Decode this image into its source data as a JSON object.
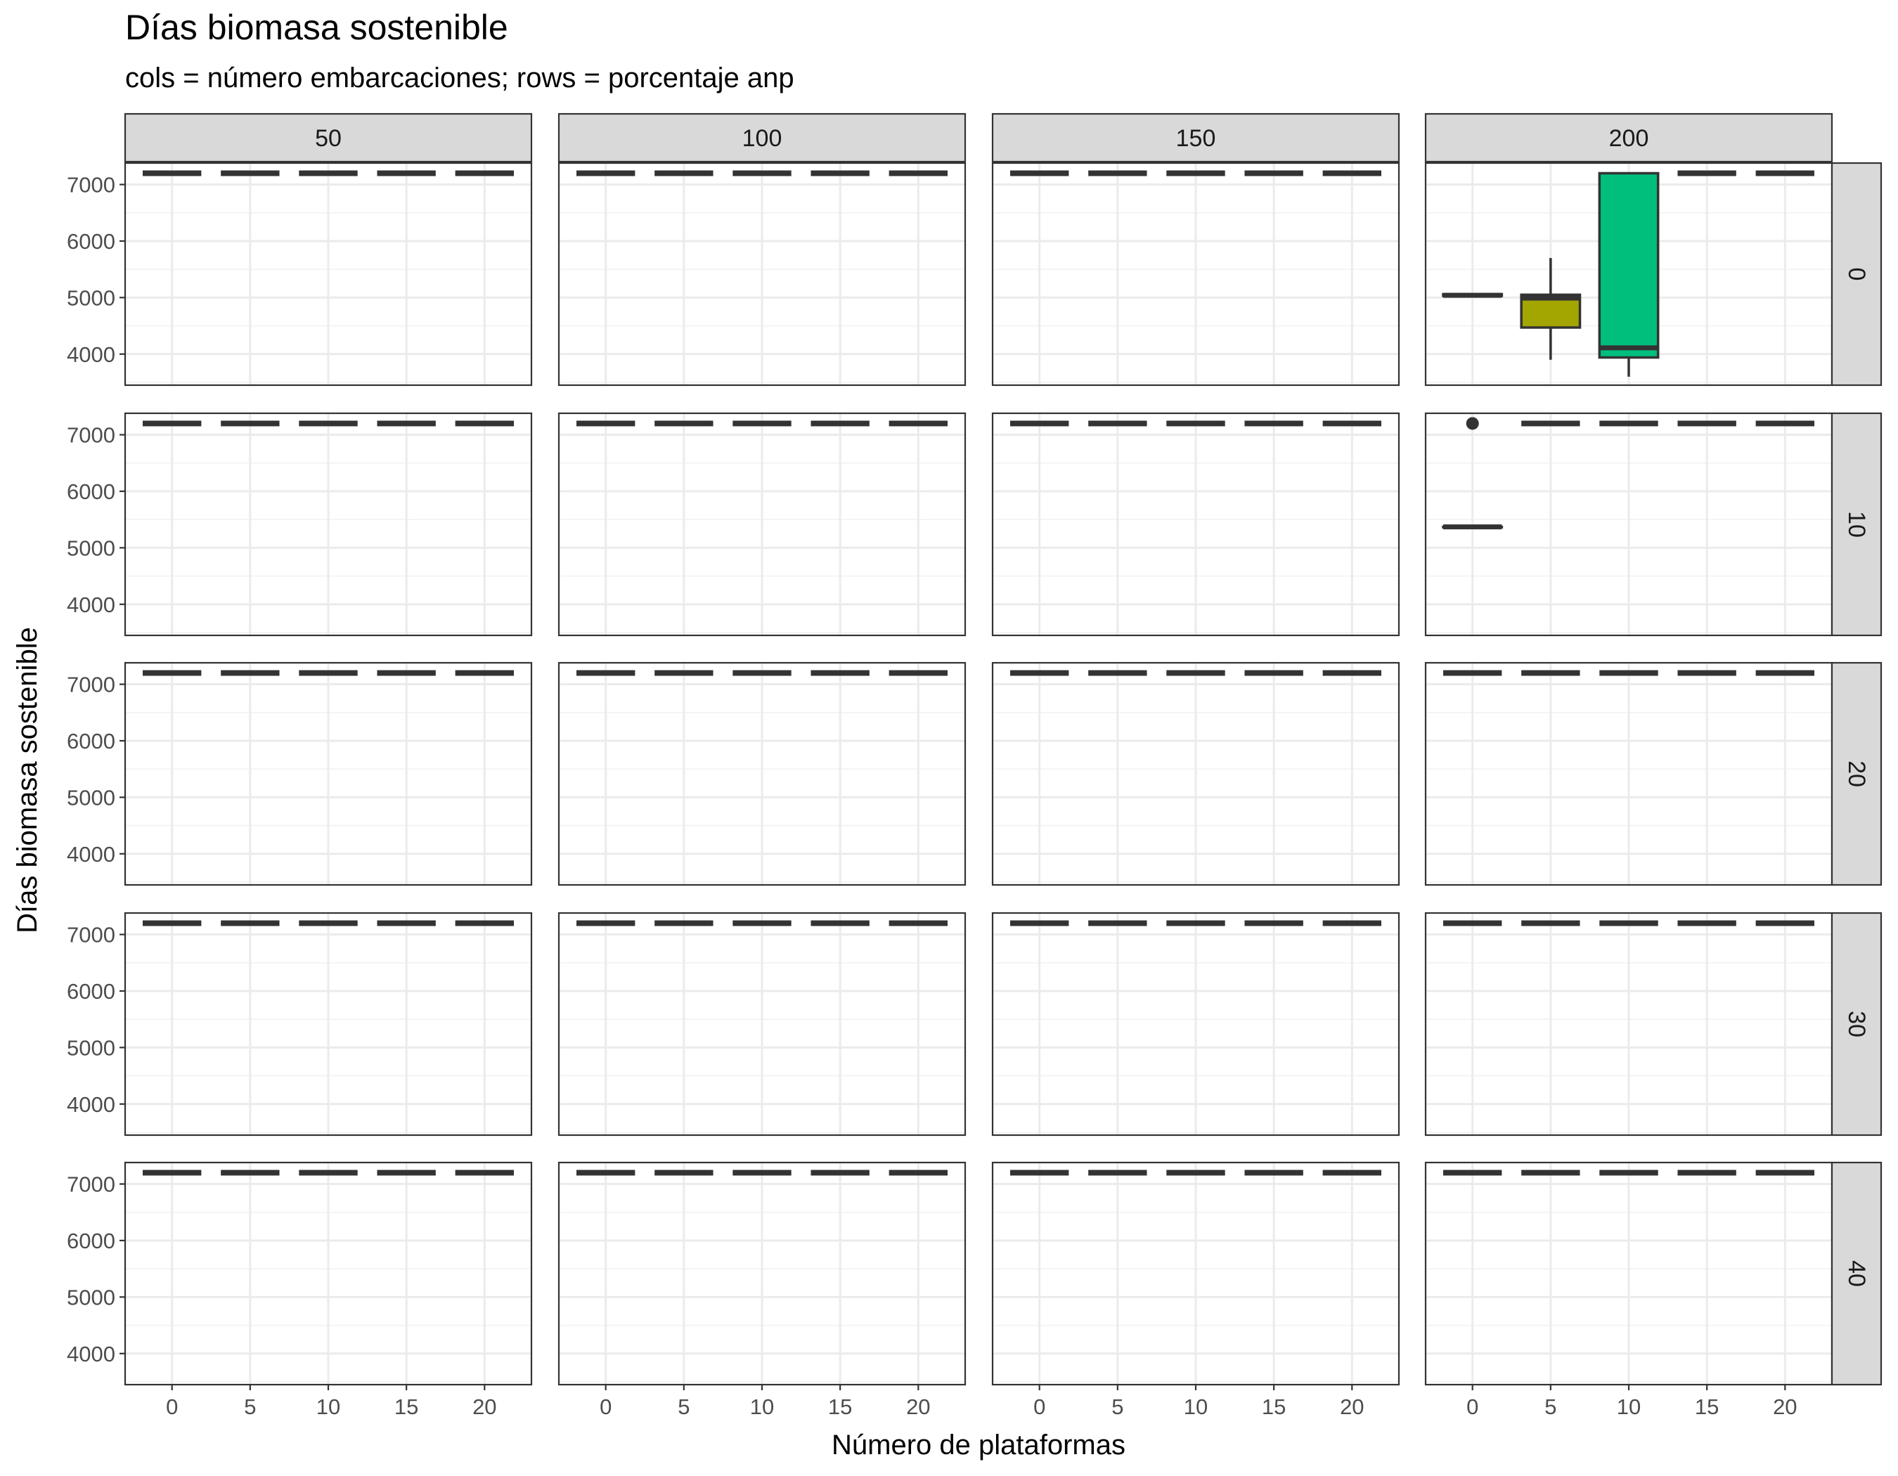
{
  "title": "Días biomasa sostenible",
  "subtitle": "cols = número embarcaciones; rows = porcentaje anp",
  "chart_data": {
    "type": "boxplot",
    "facet_type": "grid",
    "title": "Días biomasa sostenible",
    "subtitle": "cols = número embarcaciones; rows = porcentaje anp",
    "xlabel": "Número de plataformas",
    "ylabel": "Días biomasa sostenible",
    "col_facets": [
      "50",
      "100",
      "150",
      "200"
    ],
    "row_facets": [
      "0",
      "10",
      "20",
      "30",
      "40"
    ],
    "x_ticks": [
      "0",
      "5",
      "10",
      "15",
      "20"
    ],
    "y_ticks": [
      "4000",
      "5000",
      "6000",
      "7000"
    ],
    "ylim": [
      3450,
      7380
    ],
    "default_value": 7200,
    "grid": true,
    "fill_colors": {
      "0": "#F8766D",
      "5": "#A3A500",
      "10": "#00BF7D",
      "15": "#00B0F6",
      "20": "#E76BF3"
    },
    "panels": [
      {
        "col": "200",
        "row": "0",
        "boxes": [
          {
            "x": 0,
            "lower": 5030,
            "q1": 5030,
            "median": 5040,
            "q3": 5060,
            "upper": 5060,
            "outliers": []
          },
          {
            "x": 5,
            "lower": 3900,
            "q1": 4470,
            "median": 4990,
            "q3": 5050,
            "upper": 5700,
            "outliers": []
          },
          {
            "x": 10,
            "lower": 3600,
            "q1": 3940,
            "median": 4110,
            "q3": 7200,
            "upper": 7200,
            "outliers": []
          }
        ]
      },
      {
        "col": "200",
        "row": "10",
        "boxes": [
          {
            "x": 0,
            "lower": 5370,
            "q1": 5370,
            "median": 5370,
            "q3": 5370,
            "upper": 5370,
            "outliers": [
              7200
            ]
          }
        ]
      }
    ]
  }
}
